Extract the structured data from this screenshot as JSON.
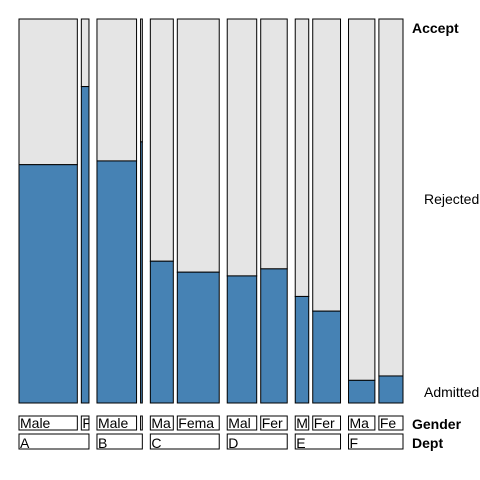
{
  "chart_data": {
    "type": "mosaic",
    "title": "",
    "variables": [
      "Dept",
      "Gender",
      "Admit"
    ],
    "factor_labels": {
      "accept": "Accept",
      "gender": "Gender",
      "dept": "Dept"
    },
    "admit_levels": [
      "Admitted",
      "Rejected"
    ],
    "colors": {
      "Admitted": "#4682b4",
      "Rejected": "#e5e5e5"
    },
    "cells": [
      {
        "dept": "A",
        "gender": "Male",
        "gender_label": "Male",
        "admitted": 512,
        "rejected": 313
      },
      {
        "dept": "A",
        "gender": "Female",
        "gender_label": "F",
        "admitted": 89,
        "rejected": 19
      },
      {
        "dept": "B",
        "gender": "Male",
        "gender_label": "Male",
        "admitted": 353,
        "rejected": 207
      },
      {
        "dept": "B",
        "gender": "Female",
        "gender_label": "",
        "admitted": 17,
        "rejected": 8
      },
      {
        "dept": "C",
        "gender": "Male",
        "gender_label": "Ma",
        "admitted": 120,
        "rejected": 205
      },
      {
        "dept": "C",
        "gender": "Female",
        "gender_label": "Fema",
        "admitted": 202,
        "rejected": 391
      },
      {
        "dept": "D",
        "gender": "Male",
        "gender_label": "Mal",
        "admitted": 138,
        "rejected": 279
      },
      {
        "dept": "D",
        "gender": "Female",
        "gender_label": "Fer",
        "admitted": 131,
        "rejected": 244
      },
      {
        "dept": "E",
        "gender": "Male",
        "gender_label": "M",
        "admitted": 53,
        "rejected": 138
      },
      {
        "dept": "E",
        "gender": "Female",
        "gender_label": "Fer",
        "admitted": 94,
        "rejected": 299
      },
      {
        "dept": "F",
        "gender": "Male",
        "gender_label": "Ma",
        "admitted": 22,
        "rejected": 351
      },
      {
        "dept": "F",
        "gender": "Female",
        "gender_label": "Fe",
        "admitted": 24,
        "rejected": 317
      }
    ]
  }
}
